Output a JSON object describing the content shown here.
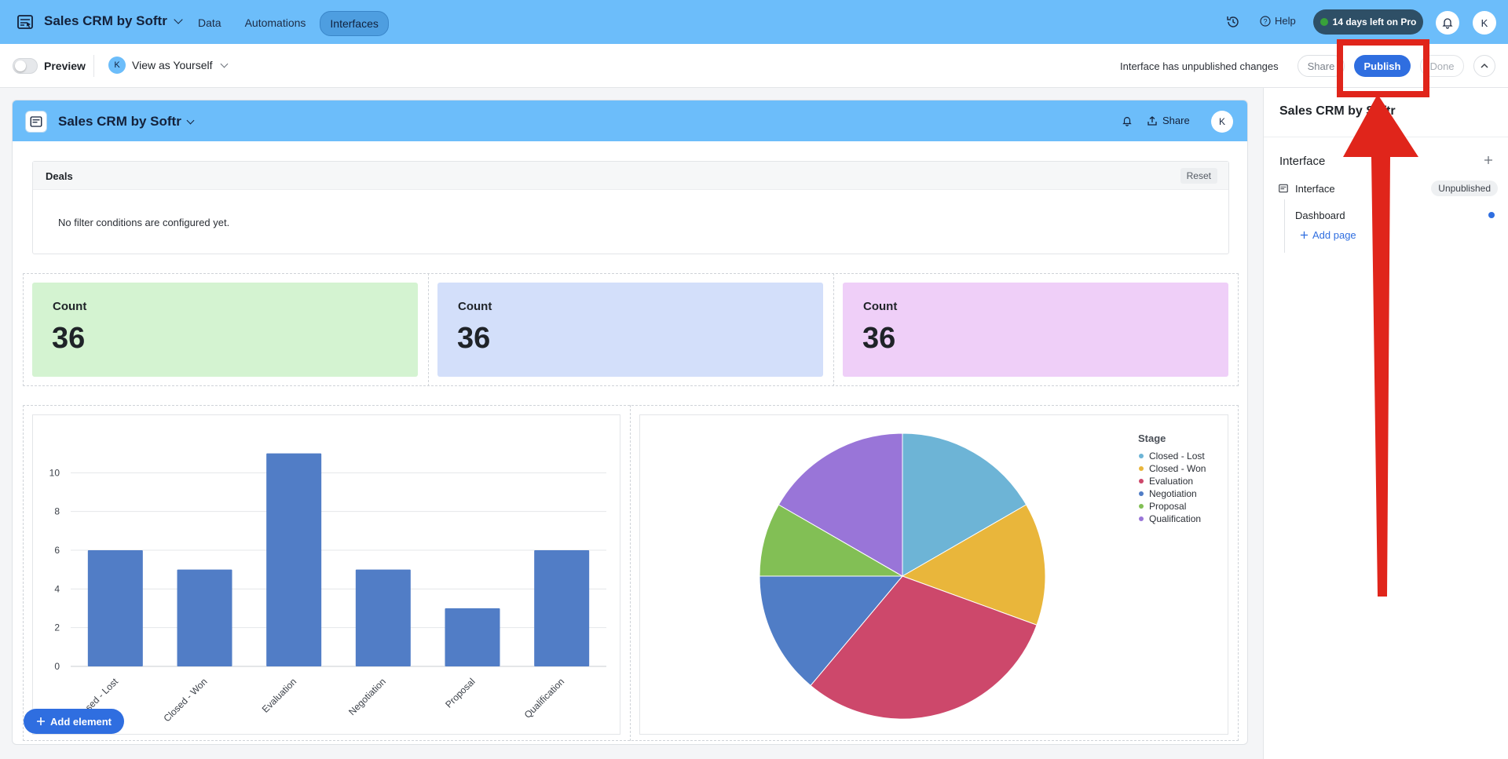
{
  "topbar": {
    "app_title": "Sales CRM by Softr",
    "tabs": [
      {
        "label": "Data",
        "active": false
      },
      {
        "label": "Automations",
        "active": false
      },
      {
        "label": "Interfaces",
        "active": true
      }
    ],
    "help_label": "Help",
    "trial_label": "14 days left on Pro",
    "avatar_initial": "K"
  },
  "toolbar": {
    "preview_label": "Preview",
    "view_as_label": "View as Yourself",
    "view_as_initial": "K",
    "status_text": "Interface has unpublished changes",
    "share_label": "Share",
    "publish_label": "Publish",
    "done_label": "Done"
  },
  "canvas": {
    "title": "Sales CRM by Softr",
    "share_label": "Share",
    "avatar_initial": "K",
    "filter": {
      "title": "Deals",
      "reset_label": "Reset",
      "empty_text": "No filter conditions are configured yet."
    },
    "metrics": [
      {
        "label": "Count",
        "value": "36",
        "color": "#d4f3d1"
      },
      {
        "label": "Count",
        "value": "36",
        "color": "#d3dffa"
      },
      {
        "label": "Count",
        "value": "36",
        "color": "#efcff8"
      }
    ],
    "add_element_label": "Add element"
  },
  "chart_data": [
    {
      "type": "bar",
      "categories": [
        "Closed - Lost",
        "Closed - Won",
        "Evaluation",
        "Negotiation",
        "Proposal",
        "Qualification"
      ],
      "values": [
        6,
        5,
        11,
        5,
        3,
        6
      ],
      "yticks": [
        0,
        2,
        4,
        6,
        8,
        10
      ],
      "ylim": [
        0,
        12
      ],
      "color": "#517dc6"
    },
    {
      "type": "pie",
      "legend_title": "Stage",
      "labels": [
        "Closed - Lost",
        "Closed - Won",
        "Evaluation",
        "Negotiation",
        "Proposal",
        "Qualification"
      ],
      "values": [
        6,
        5,
        11,
        5,
        3,
        6
      ],
      "colors": [
        "#6db4d6",
        "#e9b63b",
        "#cd486b",
        "#507dc6",
        "#82bf55",
        "#9975d8"
      ]
    }
  ],
  "right_panel": {
    "title": "Sales CRM by Softr",
    "section_label": "Interface",
    "interface_label": "Interface",
    "interface_badge": "Unpublished",
    "page_label": "Dashboard",
    "add_page_label": "Add page"
  }
}
